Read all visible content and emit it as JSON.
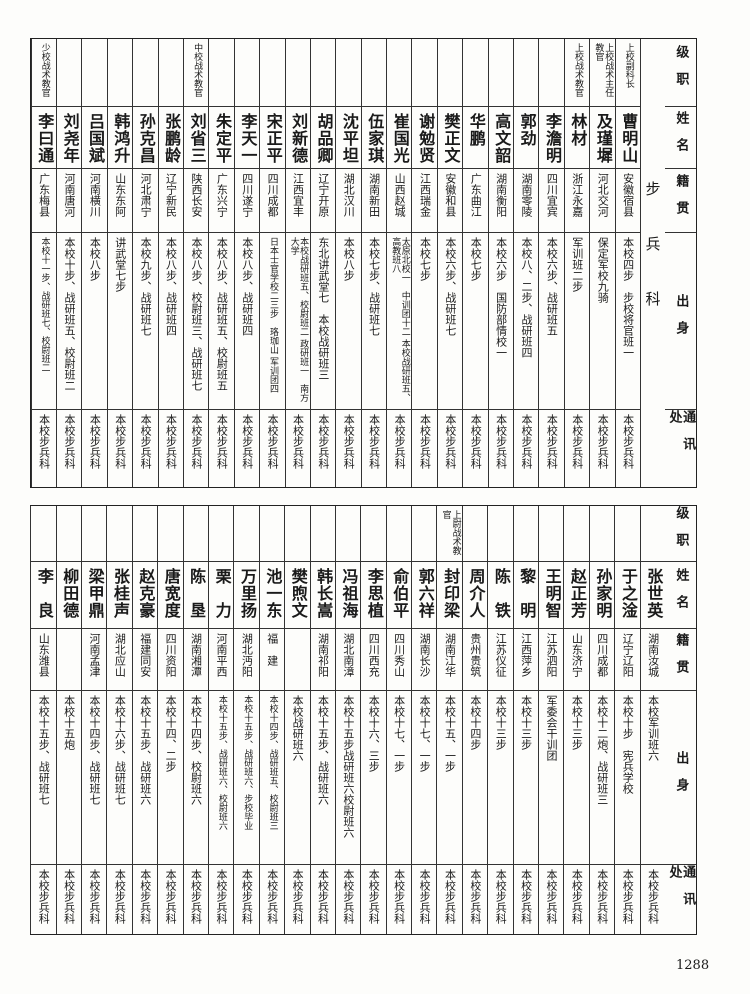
{
  "headers": {
    "rank": "级职",
    "name": "姓名",
    "origin": "籍贯",
    "education": "出身",
    "address": "通讯处"
  },
  "branch": "步兵科",
  "page_number": "1288",
  "table1": [
    {
      "rank": "上校副科长",
      "name": "曹明山",
      "origin": "安徽宿县",
      "education": "本校四步　步校将官班一",
      "address": "本校步兵科"
    },
    {
      "rank": "上校战术主任教官",
      "name": "及瑾墀",
      "origin": "河北交河",
      "education": "保定军校九骑",
      "address": "本校步兵科"
    },
    {
      "rank": "上校战术教官",
      "name": "林材",
      "origin": "浙江永嘉",
      "education": "军训班二步",
      "address": "本校步兵科"
    },
    {
      "rank": "",
      "name": "李澹明",
      "origin": "四川宜宾",
      "education": "本校六步、战研班五",
      "address": "本校步兵科"
    },
    {
      "rank": "",
      "name": "郭劲",
      "origin": "湖南零陵",
      "education": "本校八、二步、战研班四",
      "address": "本校步兵科"
    },
    {
      "rank": "",
      "name": "高文韶",
      "origin": "湖南衡阳",
      "education": "本校六步　国防部情校一",
      "address": "本校步兵科"
    },
    {
      "rank": "",
      "name": "华鹏",
      "origin": "广东曲江",
      "education": "本校七步",
      "address": "本校步兵科"
    },
    {
      "rank": "",
      "name": "樊正文",
      "origin": "安徽和县",
      "education": "本校六步、战研班七",
      "address": "本校步兵科"
    },
    {
      "rank": "",
      "name": "谢勉贤",
      "origin": "江西瑞金",
      "education": "本校七步",
      "address": "本校步兵科"
    },
    {
      "rank": "",
      "name": "崔国光",
      "origin": "山西赵城",
      "education": "太原北校一　中训团十二 本校战研班五、高教班八",
      "address": "本校步兵科"
    },
    {
      "rank": "",
      "name": "伍家琪",
      "origin": "湖南新田",
      "education": "本校七步、战研班七",
      "address": "本校步兵科"
    },
    {
      "rank": "",
      "name": "沈平坦",
      "origin": "湖北汉川",
      "education": "本校八步",
      "address": "本校步兵科"
    },
    {
      "rank": "",
      "name": "胡品卿",
      "origin": "辽宁开原",
      "education": "东北讲武堂七　本校战研班三",
      "address": "本校步兵科"
    },
    {
      "rank": "",
      "name": "刘新德",
      "origin": "江西宜丰",
      "education": "本校战研班五、校尉班二 政研班一　南方大学",
      "address": "本校步兵科"
    },
    {
      "rank": "",
      "name": "宋正平",
      "origin": "四川成都",
      "education": "日本士官学校二三步　珞珈山 军训团四",
      "address": "本校步兵科"
    },
    {
      "rank": "",
      "name": "李天一",
      "origin": "四川遂宁",
      "education": "本校八步、战研班四",
      "address": "本校步兵科"
    },
    {
      "rank": "",
      "name": "朱定平",
      "origin": "广东兴宁",
      "education": "本校八步、战研班五、校尉班五",
      "address": "本校步兵科"
    },
    {
      "rank": "中校战术教官",
      "name": "刘省三",
      "origin": "陕西长安",
      "education": "本校八步、校尉班三、战研班七",
      "address": "本校步兵科"
    },
    {
      "rank": "",
      "name": "张鹏龄",
      "origin": "辽宁新民",
      "education": "本校八步、战研班四",
      "address": "本校步兵科"
    },
    {
      "rank": "",
      "name": "孙克昌",
      "origin": "河北肃宁",
      "education": "本校九步、战研班七",
      "address": "本校步兵科"
    },
    {
      "rank": "",
      "name": "韩鸿升",
      "origin": "山东东阿",
      "education": "讲武堂七步",
      "address": "本校步兵科"
    },
    {
      "rank": "",
      "name": "吕国斌",
      "origin": "河南横川",
      "education": "本校八步",
      "address": "本校步兵科"
    },
    {
      "rank": "",
      "name": "刘尧年",
      "origin": "河南唐河",
      "education": "本校十步、战研班五、校尉班二",
      "address": "本校步兵科"
    },
    {
      "rank": "少校战术教官",
      "name": "李曰通",
      "origin": "广东梅县",
      "education": "本校十一步、战研班七、校尉班二",
      "address": "本校步兵科"
    }
  ],
  "table2": [
    {
      "rank": "",
      "name": "张世英",
      "origin": "湖南汝城",
      "education": "本校军训班六",
      "address": "本校步兵科"
    },
    {
      "rank": "",
      "name": "于之淦",
      "origin": "辽宁辽阳",
      "education": "本校十步　宪兵学校",
      "address": "本校步兵科"
    },
    {
      "rank": "",
      "name": "孙家明",
      "origin": "四川成都",
      "education": "本校十二炮、战研班三",
      "address": "本校步兵科"
    },
    {
      "rank": "",
      "name": "赵正芳",
      "origin": "山东济宁",
      "education": "本校十三步",
      "address": "本校步兵科"
    },
    {
      "rank": "",
      "name": "王明智",
      "origin": "江苏泗阳",
      "education": "军委会干训团",
      "address": "本校步兵科"
    },
    {
      "rank": "",
      "name": "黎　明",
      "origin": "江西萍乡",
      "education": "本校十三步",
      "address": "本校步兵科"
    },
    {
      "rank": "",
      "name": "陈　铁",
      "origin": "江苏仪征",
      "education": "本校十三步",
      "address": "本校步兵科"
    },
    {
      "rank": "",
      "name": "周介人",
      "origin": "贵州贵筑",
      "education": "本校十四步",
      "address": "本校步兵科"
    },
    {
      "rank": "上尉战术教官",
      "name": "封印梁",
      "origin": "湖南江华",
      "education": "本校十五、一步",
      "address": "本校步兵科"
    },
    {
      "rank": "",
      "name": "郭六祥",
      "origin": "湖南长沙",
      "education": "本校十七、一步",
      "address": "本校步兵科"
    },
    {
      "rank": "",
      "name": "俞伯平",
      "origin": "四川秀山",
      "education": "本校十七、一步",
      "address": "本校步兵科"
    },
    {
      "rank": "",
      "name": "李思植",
      "origin": "四川西充",
      "education": "本校十六、三步",
      "address": "本校步兵科"
    },
    {
      "rank": "",
      "name": "冯祖海",
      "origin": "湖北南漳",
      "education": "本校十五步战研班六校尉班六",
      "address": "本校步兵科"
    },
    {
      "rank": "",
      "name": "韩长嵩",
      "origin": "湖南祁阳",
      "education": "本校十五步、战研班六",
      "address": "本校步兵科"
    },
    {
      "rank": "",
      "name": "樊煦文",
      "origin": "",
      "education": "本校战研班六",
      "address": "本校步兵科"
    },
    {
      "rank": "",
      "name": "池一东",
      "origin": "福　建",
      "education": "本校十四步、战研班五、校尉班三",
      "address": "本校步兵科"
    },
    {
      "rank": "",
      "name": "万里扬",
      "origin": "湖北沔阳",
      "education": "本校十五步、战研班六、步校毕业",
      "address": "本校步兵科"
    },
    {
      "rank": "",
      "name": "栗　力",
      "origin": "河南平西",
      "education": "本校十五步、战研班六、校尉班六",
      "address": "本校步兵科"
    },
    {
      "rank": "",
      "name": "陈　垦",
      "origin": "湖南湘潭",
      "education": "本校十四步、校尉班六",
      "address": "本校步兵科"
    },
    {
      "rank": "",
      "name": "唐宽度",
      "origin": "四川资阳",
      "education": "本校十四、二步",
      "address": "本校步兵科"
    },
    {
      "rank": "",
      "name": "赵克豪",
      "origin": "福建同安",
      "education": "本校十五步、战研班六",
      "address": "本校步兵科"
    },
    {
      "rank": "",
      "name": "张桂声",
      "origin": "湖北应山",
      "education": "本校十六步、战研班七",
      "address": "本校步兵科"
    },
    {
      "rank": "",
      "name": "梁甲鼎",
      "origin": "河南孟津",
      "education": "本校十四步、战研班七",
      "address": "本校步兵科"
    },
    {
      "rank": "",
      "name": "柳田德",
      "origin": "",
      "education": "本校十五炮",
      "address": "本校步兵科"
    },
    {
      "rank": "",
      "name": "李　良",
      "origin": "山东潍县",
      "education": "本校十五步、战研班七",
      "address": "本校步兵科"
    }
  ]
}
